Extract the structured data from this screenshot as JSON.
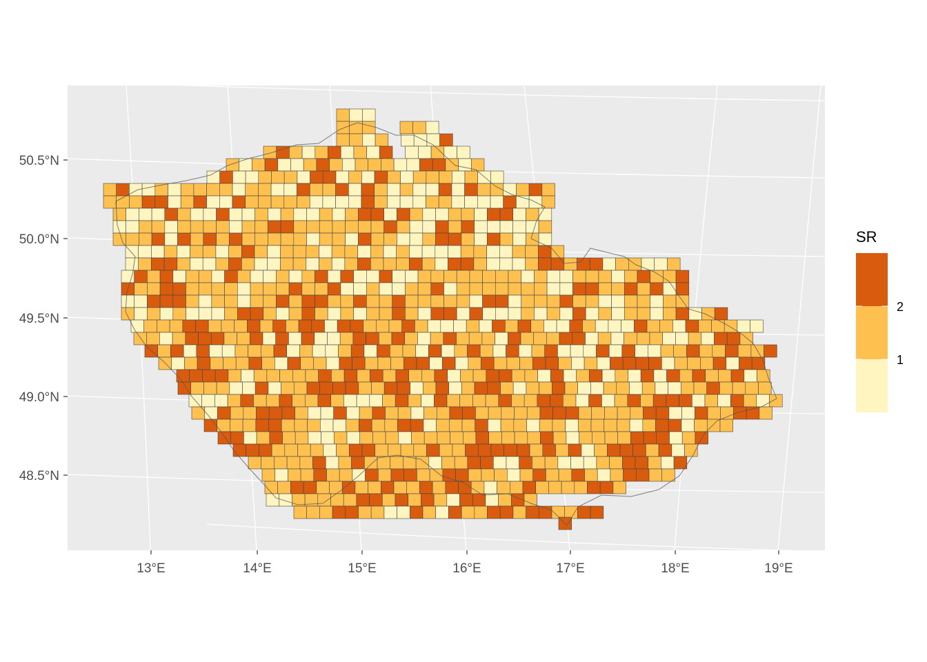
{
  "chart_data": {
    "type": "heatmap",
    "title": "",
    "legend": {
      "title": "SR",
      "breaks": [
        "1",
        "2"
      ],
      "classes": [
        1,
        2,
        3
      ],
      "colors": [
        "#FFF5C0",
        "#FEC04E",
        "#D95B0E"
      ],
      "position": "right"
    },
    "x_ticks": [
      "13°E",
      "14°E",
      "15°E",
      "16°E",
      "17°E",
      "18°E",
      "19°E"
    ],
    "y_ticks": [
      "50.5°N",
      "50.0°N",
      "49.5°N",
      "49.0°N",
      "48.5°N"
    ],
    "panel_background": "#EBEBEB",
    "grid_color": "#FFFFFF",
    "grid": true,
    "xlim": [
      12.2,
      19.45
    ],
    "ylim": [
      48.02,
      50.97
    ],
    "coords": "lon-lat (degrees), approximate",
    "cells": [
      {
        "lon": 14.84,
        "lat": 50.75,
        "sr": 1
      },
      {
        "lon": 14.98,
        "lat": 50.75,
        "sr": 1
      },
      {
        "lon": 15.12,
        "lat": 50.75,
        "sr": 2
      },
      {
        "lon": 14.84,
        "lat": 50.68,
        "sr": 1
      },
      {
        "lon": 14.98,
        "lat": 50.68,
        "sr": 1
      },
      {
        "lon": 15.12,
        "lat": 50.68,
        "sr": 3
      },
      {
        "lon": 15.54,
        "lat": 50.71,
        "sr": 1
      },
      {
        "lon": 15.68,
        "lat": 50.71,
        "sr": 1
      },
      {
        "lon": 15.82,
        "lat": 50.71,
        "sr": 1
      },
      {
        "lon": 14.2,
        "lat": 50.6,
        "sr": 1
      },
      {
        "lon": 14.34,
        "lat": 50.6,
        "sr": 1
      },
      {
        "lon": 14.48,
        "lat": 50.6,
        "sr": 1
      },
      {
        "lon": 14.62,
        "lat": 50.6,
        "sr": 2
      },
      {
        "lon": 14.2,
        "lat": 50.5,
        "sr": 2
      },
      {
        "lon": 14.34,
        "lat": 50.5,
        "sr": 1
      },
      {
        "lon": 14.48,
        "lat": 50.5,
        "sr": 2
      },
      {
        "lon": 14.62,
        "lat": 50.5,
        "sr": 1
      },
      {
        "lon": 14.76,
        "lat": 50.4,
        "sr": 3
      },
      {
        "lon": 15.4,
        "lat": 50.45,
        "sr": 3
      },
      {
        "lon": 15.54,
        "lat": 50.45,
        "sr": 1
      },
      {
        "lon": 12.7,
        "lat": 50.25,
        "sr": 2
      },
      {
        "lon": 12.84,
        "lat": 50.25,
        "sr": 2
      },
      {
        "lon": 12.98,
        "lat": 50.25,
        "sr": 1
      },
      {
        "lon": 13.12,
        "lat": 50.25,
        "sr": 2
      }
    ]
  }
}
